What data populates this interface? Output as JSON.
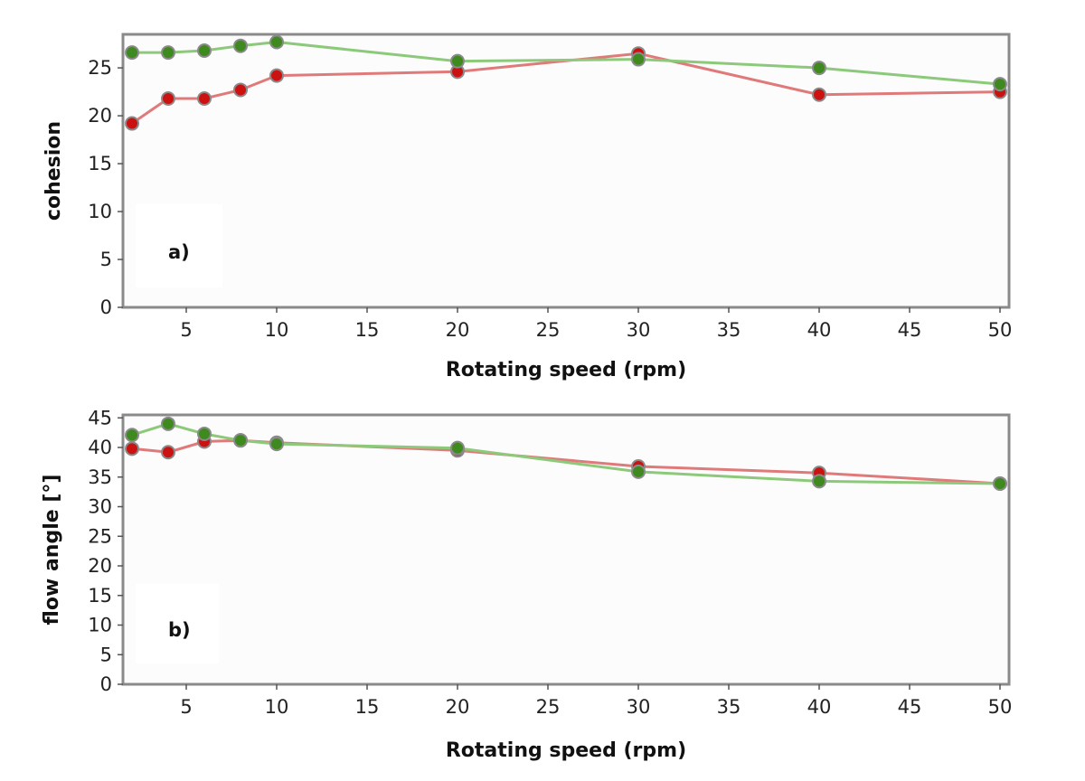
{
  "chart_data": [
    {
      "type": "line",
      "panel_label": "a)",
      "xlabel": "Rotating speed (rpm)",
      "ylabel": "cohesion",
      "xlim": [
        1.5,
        50.5
      ],
      "ylim": [
        0,
        28.5
      ],
      "xticks": [
        5,
        10,
        15,
        20,
        25,
        30,
        35,
        40,
        45,
        50
      ],
      "yticks": [
        0,
        5,
        10,
        15,
        20,
        25
      ],
      "grid": false,
      "series": [
        {
          "color": "#cc1111",
          "line_color": "#e07a7a",
          "x": [
            2,
            4,
            6,
            8,
            10,
            20,
            30,
            40,
            50
          ],
          "y": [
            19.2,
            21.8,
            21.8,
            22.7,
            24.2,
            24.6,
            26.5,
            22.2,
            22.5
          ]
        },
        {
          "color": "#3f8a1f",
          "line_color": "#8cc97a",
          "x": [
            2,
            4,
            6,
            8,
            10,
            20,
            30,
            40,
            50
          ],
          "y": [
            26.6,
            26.6,
            26.8,
            27.3,
            27.7,
            25.7,
            25.9,
            25.0,
            23.3
          ]
        }
      ]
    },
    {
      "type": "line",
      "panel_label": "b)",
      "xlabel": "Rotating speed (rpm)",
      "ylabel": "flow angle [°]",
      "xlim": [
        1.5,
        50.5
      ],
      "ylim": [
        0,
        45.5
      ],
      "xticks": [
        5,
        10,
        15,
        20,
        25,
        30,
        35,
        40,
        45,
        50
      ],
      "yticks": [
        0,
        5,
        10,
        15,
        20,
        25,
        30,
        35,
        40,
        45
      ],
      "grid": false,
      "series": [
        {
          "color": "#cc1111",
          "line_color": "#e07a7a",
          "x": [
            2,
            4,
            6,
            8,
            10,
            20,
            30,
            40,
            50
          ],
          "y": [
            39.8,
            39.2,
            41.0,
            41.2,
            40.8,
            39.5,
            36.8,
            35.7,
            33.9
          ]
        },
        {
          "color": "#3f8a1f",
          "line_color": "#8cc97a",
          "x": [
            2,
            4,
            6,
            8,
            10,
            20,
            30,
            40,
            50
          ],
          "y": [
            42.1,
            44.0,
            42.3,
            41.2,
            40.6,
            39.9,
            35.9,
            34.3,
            33.9
          ]
        }
      ]
    }
  ]
}
